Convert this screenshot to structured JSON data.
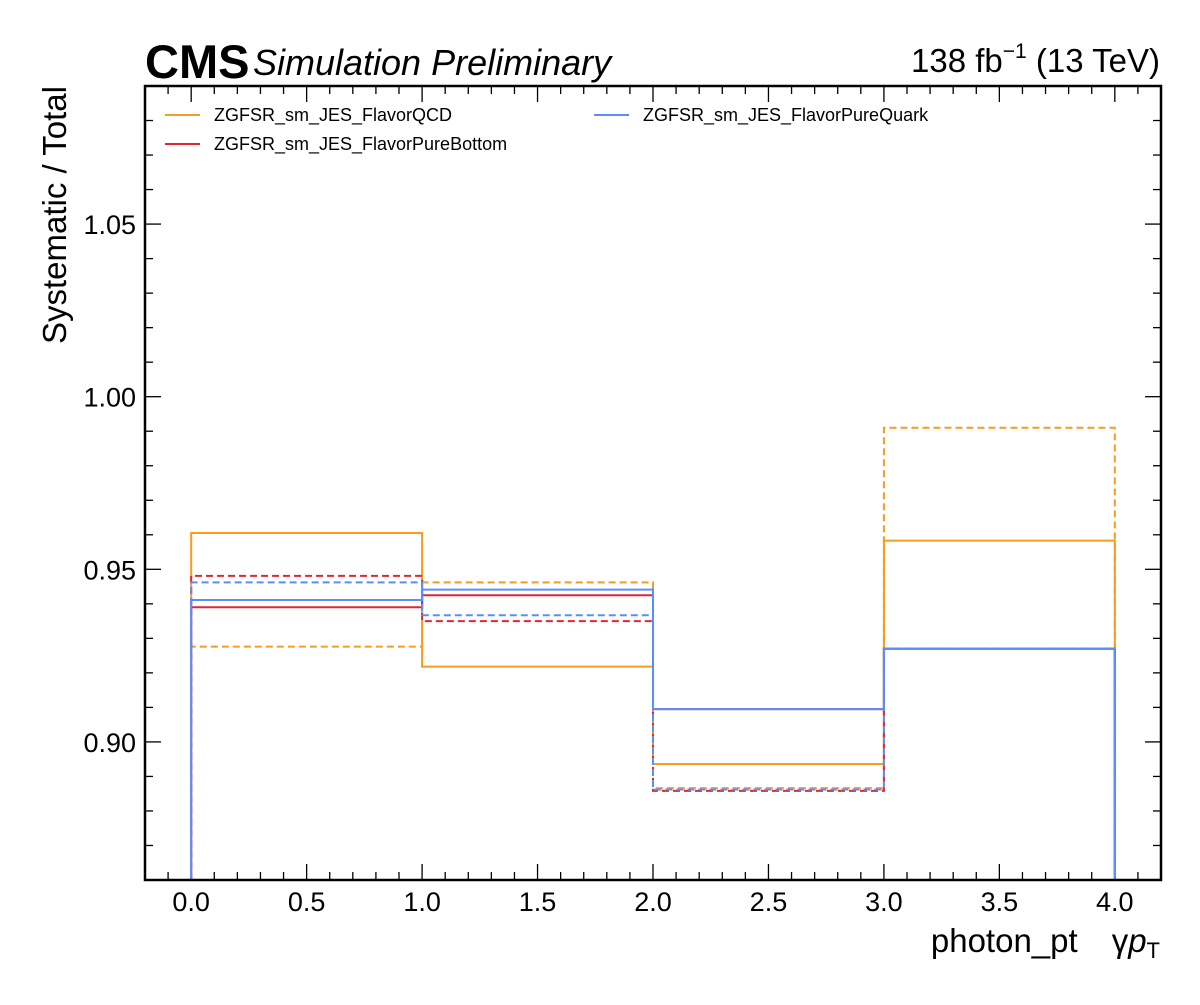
{
  "header": {
    "cms": "CMS",
    "status": "Simulation Preliminary",
    "lumi_value": "138 fb",
    "lumi_exp": "−1",
    "lumi_energy": " (13 TeV)"
  },
  "chart_data": {
    "type": "line",
    "drawstyle": "step",
    "xlabel": "photon_pt",
    "xlabel_symbol": "γ",
    "xlabel_p": "p",
    "xlabel_sub": "T",
    "ylabel": "Systematic / Total",
    "xlim": [
      -0.2,
      4.2
    ],
    "ylim": [
      0.86,
      1.09
    ],
    "bin_edges": [
      0,
      1,
      2,
      3,
      4
    ],
    "x_ticks": [
      "0.0",
      "0.5",
      "1.0",
      "1.5",
      "2.0",
      "2.5",
      "3.0",
      "3.5",
      "4.0"
    ],
    "y_ticks": [
      "0.90",
      "0.95",
      "1.00",
      "1.05"
    ],
    "legend": {
      "placement": "top-left",
      "columns": 2
    },
    "series": [
      {
        "name": "ZGFSR_sm_JES_FlavorQCD",
        "color": "#f89c20",
        "style": "solid",
        "values": [
          0.9605,
          0.9218,
          0.8936,
          0.9583
        ]
      },
      {
        "name": "",
        "color": "#f89c20",
        "style": "dashed",
        "values": [
          0.9276,
          0.9462,
          0.8866,
          0.991
        ]
      },
      {
        "name": "ZGFSR_sm_JES_FlavorPureBottom",
        "color": "#e42536",
        "style": "solid",
        "values": [
          0.939,
          0.9425,
          0.9095,
          0.927
        ]
      },
      {
        "name": "",
        "color": "#e42536",
        "style": "dashed",
        "values": [
          0.9481,
          0.935,
          0.8858,
          0.927
        ]
      },
      {
        "name": "ZGFSR_sm_JES_FlavorPureQuark",
        "color": "#5790fc",
        "style": "solid",
        "values": [
          0.9411,
          0.9441,
          0.9095,
          0.927
        ]
      },
      {
        "name": "",
        "color": "#5790fc",
        "style": "dashed",
        "values": [
          0.9462,
          0.9367,
          0.8862,
          0.927
        ]
      }
    ]
  }
}
